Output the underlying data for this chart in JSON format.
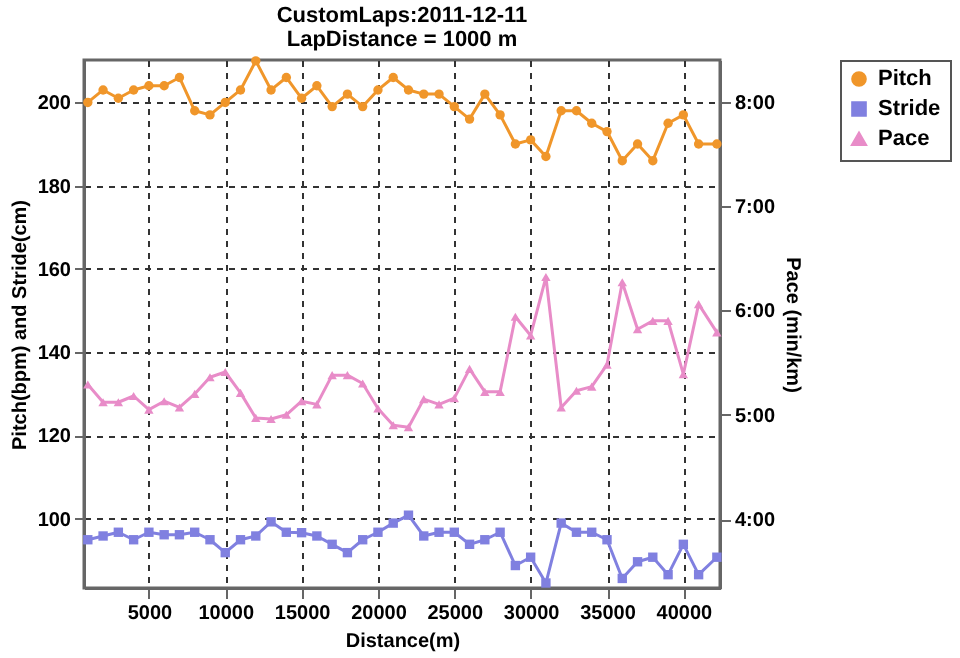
{
  "chart_data": {
    "type": "line",
    "title": "CustomLaps:2011-12-11",
    "subtitle": "LapDistance = 1000 m",
    "xlabel": "Distance(m)",
    "ylabel": "Pitch(bpm) and Stride(cm)",
    "y2label": "Pace (min/km)",
    "x": [
      1000,
      2000,
      3000,
      4000,
      5000,
      6000,
      7000,
      8000,
      9000,
      10000,
      11000,
      12000,
      13000,
      14000,
      15000,
      16000,
      17000,
      18000,
      19000,
      20000,
      21000,
      22000,
      23000,
      24000,
      25000,
      26000,
      27000,
      28000,
      29000,
      30000,
      31000,
      32000,
      33000,
      34000,
      35000,
      36000,
      37000,
      38000,
      39000,
      40000,
      41000,
      42195
    ],
    "series": [
      {
        "name": "Pitch",
        "color": "#f0962a",
        "marker": "circle",
        "values": [
          200,
          203,
          201,
          203,
          204,
          204,
          206,
          198,
          197,
          200,
          203,
          210,
          203,
          206,
          201,
          204,
          199,
          202,
          199,
          203,
          206,
          203,
          202,
          202,
          199,
          196,
          202,
          197,
          190,
          191,
          187,
          198,
          198,
          195,
          193,
          186,
          190,
          186,
          195,
          197,
          190,
          190
        ]
      },
      {
        "name": "Stride",
        "color": "#8080e0",
        "marker": "square",
        "values": [
          94.9,
          95.8,
          96.7,
          94.9,
          96.7,
          96.1,
          96.1,
          96.7,
          94.9,
          91.8,
          94.9,
          95.8,
          99.2,
          96.7,
          96.6,
          95.8,
          93.8,
          91.8,
          94.9,
          96.7,
          98.9,
          100.8,
          95.8,
          96.7,
          96.7,
          93.8,
          94.9,
          96.7,
          88.7,
          90.7,
          84.5,
          98.9,
          96.7,
          96.7,
          94.9,
          85.6,
          89.6,
          90.7,
          86.5,
          93.8,
          86.5,
          90.7
        ]
      },
      {
        "name": "Pace",
        "color": "#e88cc8",
        "marker": "triangle",
        "axis": "y2",
        "values": [
          5.29,
          5.12,
          5.12,
          5.18,
          5.05,
          5.13,
          5.07,
          5.2,
          5.36,
          5.41,
          5.21,
          4.97,
          4.96,
          5.0,
          5.13,
          5.1,
          5.38,
          5.38,
          5.3,
          5.06,
          4.9,
          4.88,
          5.15,
          5.1,
          5.16,
          5.44,
          5.22,
          5.22,
          5.94,
          5.76,
          6.32,
          5.07,
          5.23,
          5.27,
          5.48,
          6.27,
          5.82,
          5.9,
          5.9,
          5.39,
          6.06,
          5.79
        ]
      }
    ],
    "xlim": [
      750,
      42400
    ],
    "xticks": [
      5000,
      10000,
      15000,
      20000,
      25000,
      30000,
      35000,
      40000
    ],
    "ylim": [
      83.3,
      210.2
    ],
    "yticks": [
      100,
      120,
      140,
      160,
      180,
      200
    ],
    "y2lim": [
      3.34,
      8.4
    ],
    "y2ticks": [
      {
        "value": 4,
        "label": "4:00"
      },
      {
        "value": 5,
        "label": "5:00"
      },
      {
        "value": 6,
        "label": "6:00"
      },
      {
        "value": 7,
        "label": "7:00"
      },
      {
        "value": 8,
        "label": "8:00"
      }
    ],
    "grid": true,
    "legend": "top right",
    "line_style": "solid"
  }
}
